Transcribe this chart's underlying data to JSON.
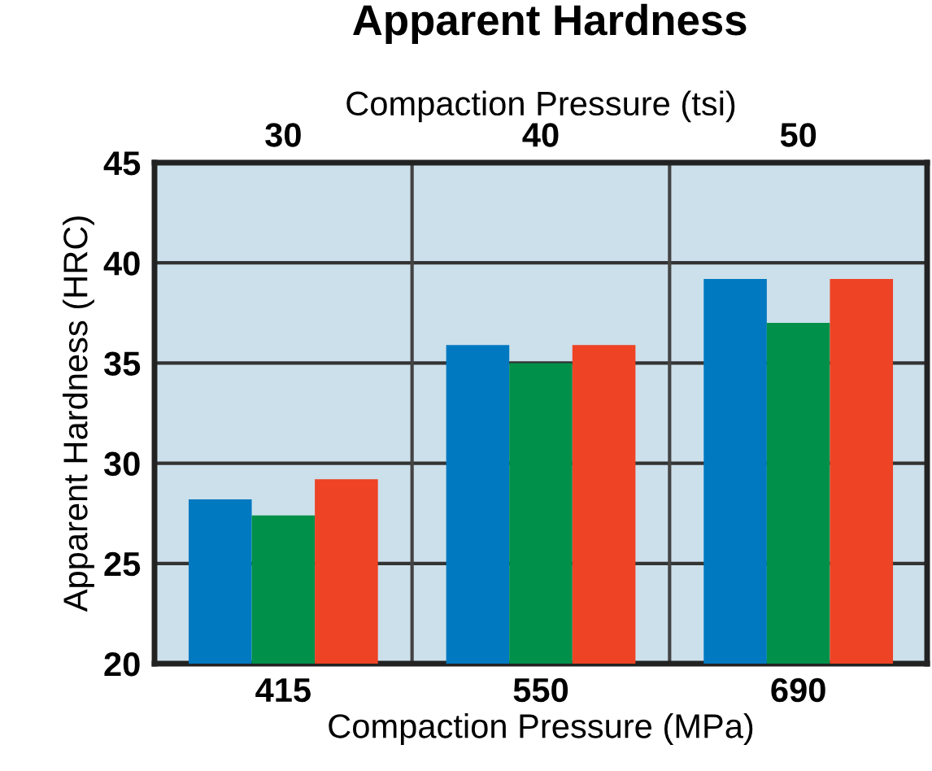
{
  "chart_data": {
    "type": "bar",
    "title": "Apparent Hardness",
    "xlabel": "Compaction Pressure (MPa)",
    "x2label": "Compaction Pressure (tsi)",
    "ylabel": "Apparent Hardness (HRC)",
    "categories": [
      "415",
      "550",
      "690"
    ],
    "series": [
      {
        "color": "#0079c1",
        "values": [
          28.2,
          35.9,
          39.2
        ]
      },
      {
        "color": "#00904a",
        "values": [
          27.4,
          35.0,
          37.0
        ]
      },
      {
        "color": "#ee4325",
        "values": [
          29.2,
          35.9,
          39.2
        ]
      }
    ],
    "ylim": [
      20,
      45
    ],
    "yticks": [
      20,
      25,
      30,
      35,
      40,
      45
    ],
    "x2lim": [
      25,
      55
    ],
    "x2ticks": [
      30,
      40,
      50
    ],
    "grid": true,
    "legend": false
  }
}
